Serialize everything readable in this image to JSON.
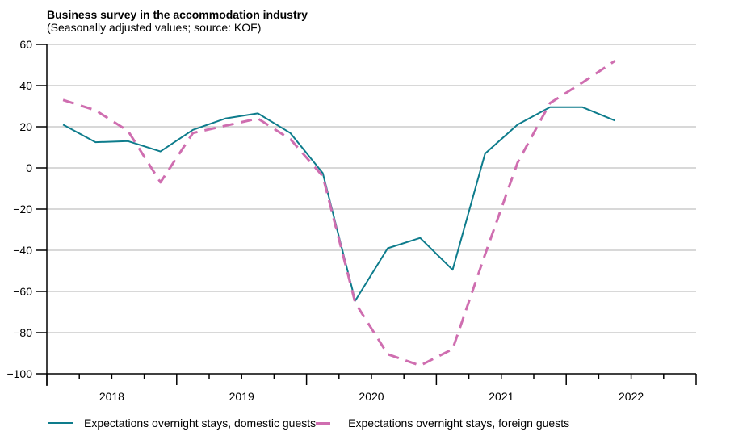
{
  "chart_data": {
    "type": "line",
    "title": "Business survey in the accommodation industry",
    "subtitle": "(Seasonally adjusted values; source: KOF)",
    "xlabel": "",
    "ylabel": "",
    "ylim": [
      -100,
      60
    ],
    "yticks": [
      60,
      40,
      20,
      0,
      -20,
      -40,
      -60,
      -80,
      -100
    ],
    "ytick_labels": [
      "60",
      "40",
      "20",
      "0",
      "−20",
      "−40",
      "−60",
      "−80",
      "−100"
    ],
    "xlim": [
      2018,
      2023
    ],
    "xtick_labels": [
      "2018",
      "2019",
      "2020",
      "2021",
      "2022"
    ],
    "grid": true,
    "legend_position": "bottom",
    "x": [
      2018.125,
      2018.375,
      2018.625,
      2018.875,
      2019.125,
      2019.375,
      2019.625,
      2019.875,
      2020.125,
      2020.375,
      2020.625,
      2020.875,
      2021.125,
      2021.375,
      2021.625,
      2021.875,
      2022.125,
      2022.375
    ],
    "series": [
      {
        "name": "Expectations overnight stays, domestic guests",
        "color": "#0e7c8c",
        "style": "solid",
        "values": [
          21,
          12.5,
          13,
          8,
          18.5,
          24,
          26.5,
          17,
          -2.5,
          -64.5,
          -39,
          -34,
          -49.5,
          7,
          21,
          29.5,
          29.5,
          23
        ]
      },
      {
        "name": "Expectations overnight stays, foreign guests",
        "color": "#cf6eb0",
        "style": "dashed",
        "values": [
          33,
          28,
          18,
          -7,
          17,
          20.5,
          24,
          14,
          -4,
          -65.5,
          -90.5,
          -96,
          -88,
          -42,
          2.5,
          31.5,
          41.5,
          52
        ]
      }
    ]
  }
}
